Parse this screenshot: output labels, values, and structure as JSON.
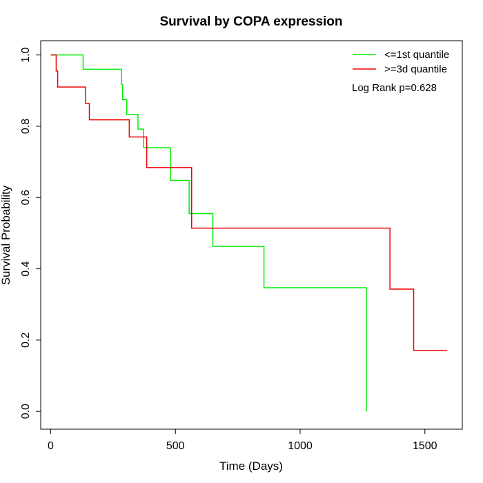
{
  "chart_data": {
    "type": "line",
    "title": "Survival by COPA expression",
    "xlabel": "Time (Days)",
    "ylabel": "Survival Probability",
    "xlim": [
      -40,
      1650
    ],
    "ylim": [
      -0.05,
      1.04
    ],
    "xticks": [
      0,
      500,
      1000,
      1500
    ],
    "yticks": [
      0.0,
      0.2,
      0.4,
      0.6,
      0.8,
      1.0
    ],
    "xtick_labels": [
      "0",
      "500",
      "1000",
      "1500"
    ],
    "ytick_labels": [
      "0.0",
      "0.2",
      "0.4",
      "0.6",
      "0.8",
      "1.0"
    ],
    "grid": false,
    "legend_position": "top-right",
    "annotation": "Log Rank p=0.628",
    "series": [
      {
        "name": "<=1st quantile",
        "color": "#00ee00",
        "step": true,
        "x": [
          0,
          130,
          280,
          284,
          288,
          305,
          350,
          372,
          480,
          555,
          650,
          855,
          1265,
          1265
        ],
        "y": [
          1.0,
          0.96,
          0.96,
          0.917,
          0.875,
          0.833,
          0.792,
          0.74,
          0.648,
          0.555,
          0.463,
          0.347,
          0.347,
          0.0
        ]
      },
      {
        "name": ">=3d quantile",
        "color": "#ee0000",
        "step": true,
        "x": [
          0,
          22,
          28,
          140,
          155,
          315,
          385,
          565,
          1360,
          1455,
          1590
        ],
        "y": [
          1.0,
          0.955,
          0.91,
          0.864,
          0.818,
          0.77,
          0.684,
          0.514,
          0.343,
          0.171,
          0.171
        ]
      }
    ]
  }
}
